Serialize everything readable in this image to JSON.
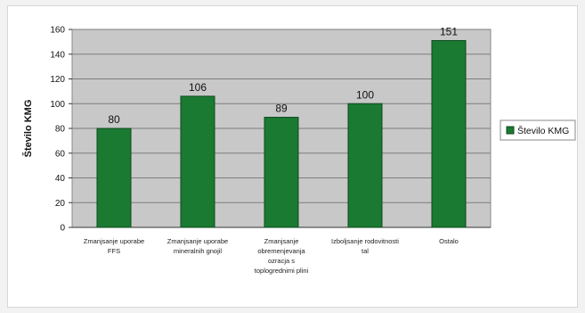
{
  "chart_data": {
    "type": "bar",
    "categories": [
      [
        "Zmanjsanje uporabe",
        "FFS"
      ],
      [
        "Zmanjsanje uporabe",
        "mineralnih gnojil"
      ],
      [
        "Zmanjsanje",
        "obremenjevanja",
        "ozracja s",
        "toplogrednimi plini"
      ],
      [
        "Izboljsanje rodovitnosti",
        "tal"
      ],
      [
        "Ostalo"
      ]
    ],
    "values": [
      80,
      106,
      89,
      100,
      151
    ],
    "series": [
      {
        "name": "Število KMG",
        "values": [
          80,
          106,
          89,
          100,
          151
        ]
      }
    ],
    "ylabel": "Število KMG",
    "xlabel": "",
    "ylim": [
      0,
      160
    ],
    "yticks": [
      0,
      20,
      40,
      60,
      80,
      100,
      120,
      140,
      160
    ],
    "grid": true,
    "legend_position": "right",
    "colors": {
      "bar": "#1a7a32",
      "bar_edge": "#0f4a1e",
      "plot_bg": "#c8c8c8",
      "grid": "#7d7d7d"
    }
  }
}
